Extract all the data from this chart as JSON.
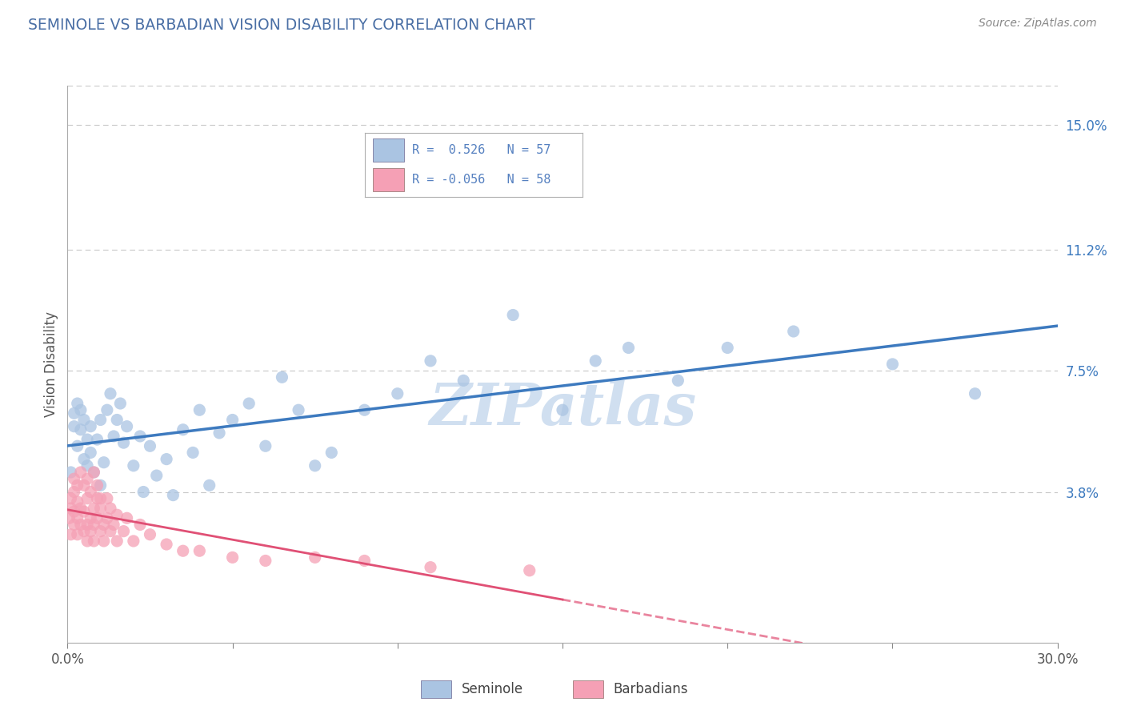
{
  "title": "SEMINOLE VS BARBADIAN VISION DISABILITY CORRELATION CHART",
  "source": "Source: ZipAtlas.com",
  "ylabel": "Vision Disability",
  "xlim": [
    0.0,
    0.3
  ],
  "ylim": [
    -0.008,
    0.162
  ],
  "ytick_positions": [
    0.038,
    0.075,
    0.112,
    0.15
  ],
  "ytick_labels": [
    "3.8%",
    "7.5%",
    "11.2%",
    "15.0%"
  ],
  "seminole_R": 0.526,
  "seminole_N": 57,
  "barbadian_R": -0.056,
  "barbadian_N": 58,
  "seminole_color": "#aac4e2",
  "seminole_line_color": "#3d7abf",
  "barbadian_color": "#f5a0b5",
  "barbadian_line_color": "#e05075",
  "legend_text_color": "#5580c0",
  "background_color": "#ffffff",
  "grid_color": "#c8c8c8",
  "title_color": "#4a6fa5",
  "watermark_color": "#d0dff0",
  "seminole_x": [
    0.001,
    0.002,
    0.002,
    0.003,
    0.003,
    0.004,
    0.004,
    0.005,
    0.005,
    0.006,
    0.006,
    0.007,
    0.007,
    0.008,
    0.009,
    0.01,
    0.01,
    0.011,
    0.012,
    0.013,
    0.014,
    0.015,
    0.016,
    0.017,
    0.018,
    0.02,
    0.022,
    0.023,
    0.025,
    0.027,
    0.03,
    0.032,
    0.035,
    0.038,
    0.04,
    0.043,
    0.046,
    0.05,
    0.055,
    0.06,
    0.065,
    0.07,
    0.075,
    0.08,
    0.09,
    0.1,
    0.11,
    0.12,
    0.135,
    0.15,
    0.16,
    0.17,
    0.185,
    0.2,
    0.22,
    0.25,
    0.275
  ],
  "seminole_y": [
    0.044,
    0.058,
    0.062,
    0.052,
    0.065,
    0.057,
    0.063,
    0.048,
    0.06,
    0.046,
    0.054,
    0.05,
    0.058,
    0.044,
    0.054,
    0.04,
    0.06,
    0.047,
    0.063,
    0.068,
    0.055,
    0.06,
    0.065,
    0.053,
    0.058,
    0.046,
    0.055,
    0.038,
    0.052,
    0.043,
    0.048,
    0.037,
    0.057,
    0.05,
    0.063,
    0.04,
    0.056,
    0.06,
    0.065,
    0.052,
    0.073,
    0.063,
    0.046,
    0.05,
    0.063,
    0.068,
    0.078,
    0.072,
    0.092,
    0.063,
    0.078,
    0.082,
    0.072,
    0.082,
    0.087,
    0.077,
    0.068
  ],
  "barbadian_x": [
    0.0005,
    0.001,
    0.001,
    0.001,
    0.002,
    0.002,
    0.002,
    0.002,
    0.003,
    0.003,
    0.003,
    0.003,
    0.004,
    0.004,
    0.004,
    0.005,
    0.005,
    0.005,
    0.006,
    0.006,
    0.006,
    0.006,
    0.007,
    0.007,
    0.007,
    0.008,
    0.008,
    0.008,
    0.008,
    0.009,
    0.009,
    0.009,
    0.01,
    0.01,
    0.01,
    0.011,
    0.011,
    0.012,
    0.012,
    0.013,
    0.013,
    0.014,
    0.015,
    0.015,
    0.017,
    0.018,
    0.02,
    0.022,
    0.025,
    0.03,
    0.035,
    0.04,
    0.05,
    0.06,
    0.075,
    0.09,
    0.11,
    0.14
  ],
  "barbadian_y": [
    0.03,
    0.033,
    0.036,
    0.025,
    0.038,
    0.028,
    0.032,
    0.042,
    0.03,
    0.035,
    0.025,
    0.04,
    0.033,
    0.028,
    0.044,
    0.032,
    0.026,
    0.04,
    0.028,
    0.036,
    0.023,
    0.042,
    0.03,
    0.038,
    0.026,
    0.033,
    0.044,
    0.028,
    0.023,
    0.036,
    0.03,
    0.04,
    0.026,
    0.033,
    0.036,
    0.028,
    0.023,
    0.036,
    0.03,
    0.026,
    0.033,
    0.028,
    0.023,
    0.031,
    0.026,
    0.03,
    0.023,
    0.028,
    0.025,
    0.022,
    0.02,
    0.02,
    0.018,
    0.017,
    0.018,
    0.017,
    0.015,
    0.014
  ]
}
